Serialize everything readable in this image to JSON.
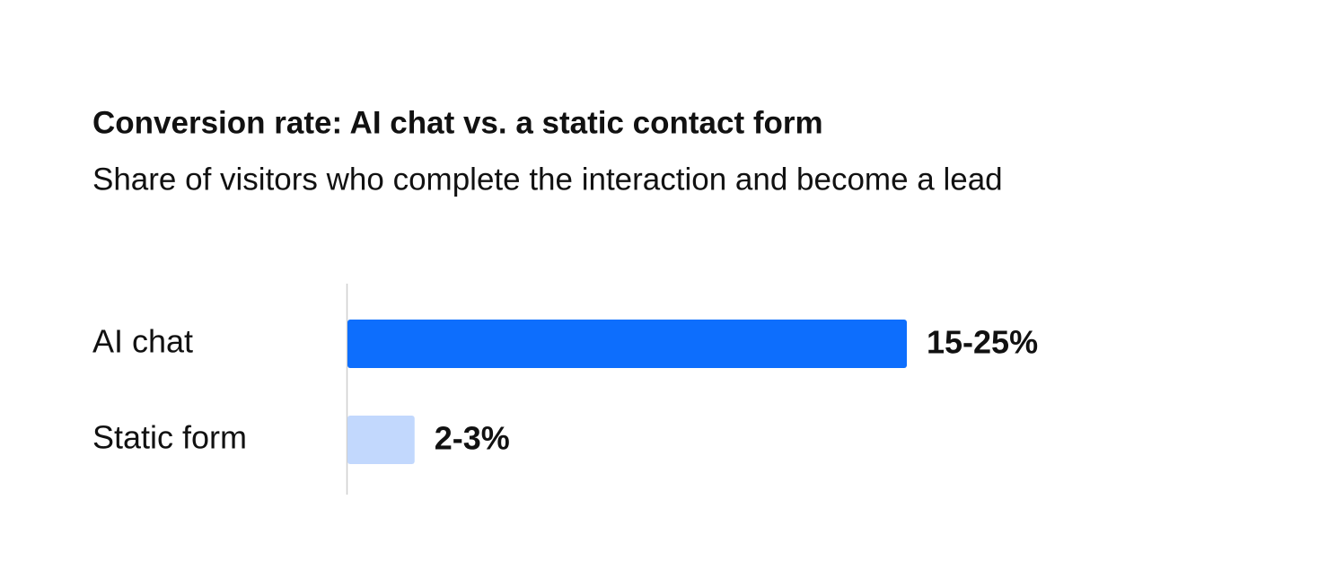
{
  "chart_data": {
    "type": "hbar",
    "title": "Conversion rate: AI chat vs. a static contact form",
    "subtitle": "Share of visitors who complete the interaction and become a lead",
    "categories": [
      "AI chat",
      "Static form"
    ],
    "values": [
      25,
      3
    ],
    "value_labels": [
      "15-25%",
      "2-3%"
    ],
    "colors": [
      "#0d6efd",
      "#c2d8fd"
    ],
    "xlim": [
      0,
      25
    ]
  }
}
